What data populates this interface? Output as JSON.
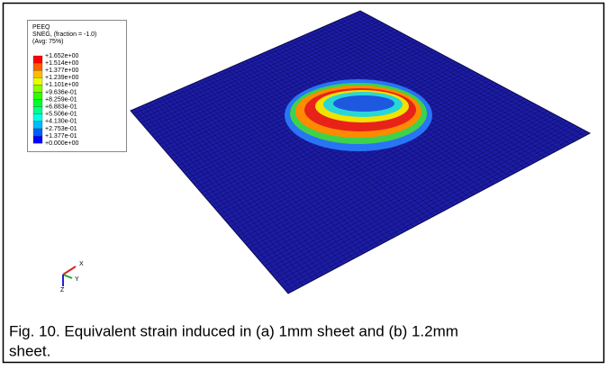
{
  "figure": {
    "legend": {
      "title_lines": [
        "PEEQ",
        "SNEG, (fraction = -1.0)",
        "(Avg: 75%)"
      ],
      "labels": [
        "+1.652e+00",
        "+1.514e+00",
        "+1.377e+00",
        "+1.239e+00",
        "+1.101e+00",
        "+9.636e-01",
        "+8.259e-01",
        "+6.883e-01",
        "+5.506e-01",
        "+4.130e-01",
        "+2.753e-01",
        "+1.377e-01",
        "+0.000e+00"
      ]
    },
    "triad": {
      "x": "X",
      "y": "Y",
      "z": "Z"
    },
    "caption": [
      "Fig. 10. Equivalent strain induced in (a) 1mm sheet and (b) 1.2mm",
      "sheet."
    ]
  }
}
